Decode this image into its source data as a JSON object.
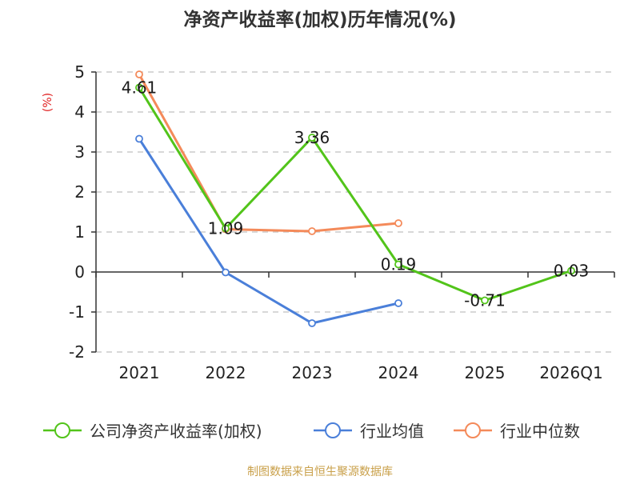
{
  "chart_data": {
    "type": "line",
    "title": "净资产收益率(加权)历年情况(%)",
    "ylabel": "(%)",
    "xlabel": "",
    "categories": [
      "2021",
      "2022",
      "2023",
      "2024",
      "2025",
      "2026Q1"
    ],
    "ylim": [
      -2,
      5
    ],
    "yticks": [
      5,
      4,
      3,
      2,
      1,
      0,
      -1,
      -2
    ],
    "grid": true,
    "legend_position": "bottom",
    "series": [
      {
        "name": "公司净资产收益率(加权)",
        "color": "#52c41a",
        "values": [
          4.61,
          1.09,
          3.36,
          0.19,
          -0.71,
          0.03
        ],
        "labels": [
          "4.61",
          "1.09",
          "3.36",
          "0.19",
          "-0.71",
          "0.03"
        ]
      },
      {
        "name": "行业均值",
        "color": "#4a7fd9",
        "values": [
          3.33,
          -0.01,
          -1.28,
          -0.78,
          null,
          null
        ]
      },
      {
        "name": "行业中位数",
        "color": "#f48a5a",
        "values": [
          4.94,
          1.07,
          1.02,
          1.22,
          null,
          null
        ]
      }
    ]
  },
  "source_text": "制图数据来自恒生聚源数据库",
  "colors": {
    "source": "#c9a04a",
    "ylabel": "#e02020",
    "axis": "#333333",
    "grid": "#cccccc"
  }
}
